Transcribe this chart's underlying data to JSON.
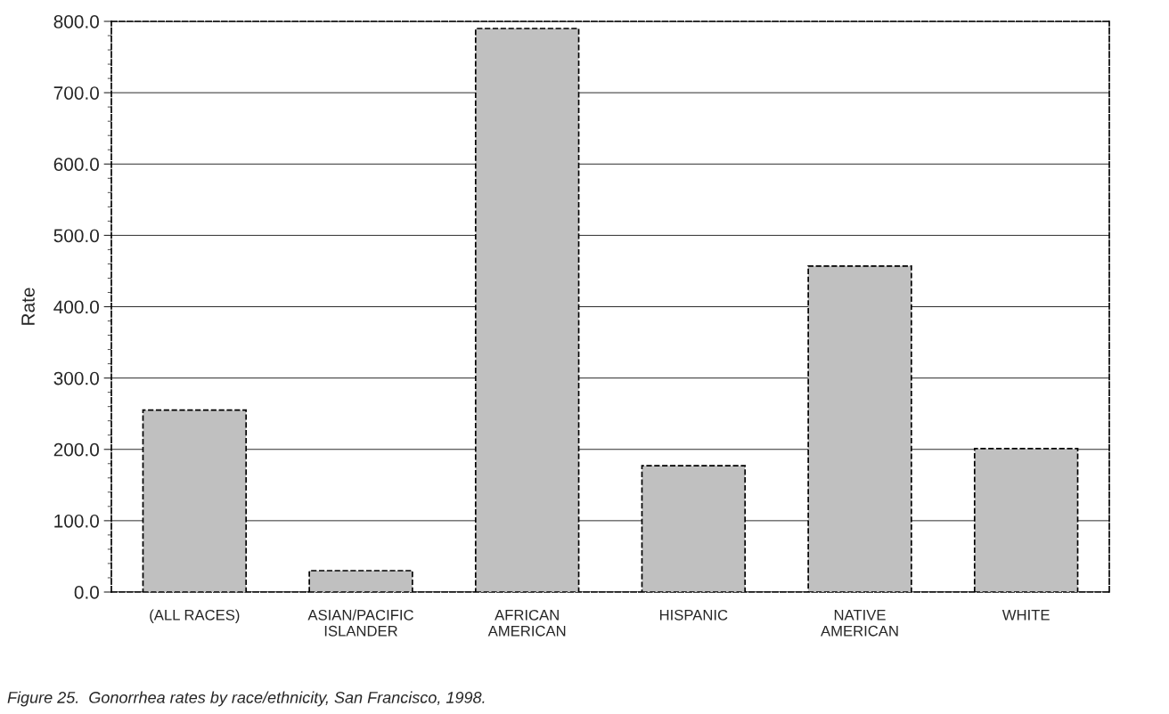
{
  "chart_data": {
    "type": "bar",
    "categories": [
      "(ALL RACES)",
      "ASIAN/PACIFIC\nISLANDER",
      "AFRICAN\nAMERICAN",
      "HISPANIC",
      "NATIVE\nAMERICAN",
      "WHITE"
    ],
    "values": [
      255,
      30,
      790,
      177,
      457,
      201
    ],
    "color": "#c0c0c0",
    "ylabel": "Rate",
    "ylim": [
      0,
      800
    ],
    "yticks": [
      {
        "value": 0,
        "label": "0.0"
      },
      {
        "value": 100,
        "label": "100.0"
      },
      {
        "value": 200,
        "label": "200.0"
      },
      {
        "value": 300,
        "label": "300.0"
      },
      {
        "value": 400,
        "label": "400.0"
      },
      {
        "value": 500,
        "label": "500.0"
      },
      {
        "value": 600,
        "label": "600.0"
      },
      {
        "value": 700,
        "label": "700.0"
      },
      {
        "value": 800,
        "label": "800.0"
      }
    ],
    "grid": "y",
    "annotations": [
      "Figure 25.  Gonorrhea rates by race/ethnicity, San Francisco, 1998."
    ]
  }
}
